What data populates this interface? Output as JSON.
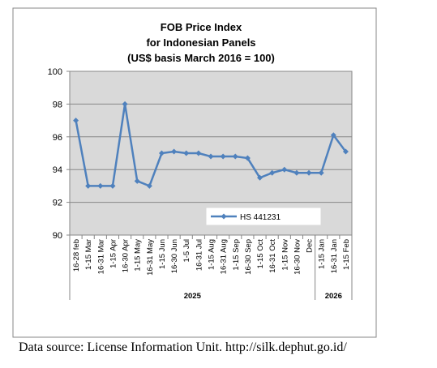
{
  "source_note": "Data source: License Information Unit. http://silk.dephut.go.id/",
  "chart_data": {
    "type": "line",
    "title": [
      "FOB Price Index",
      "for Indonesian Panels",
      "(US$ basis March 2016 = 100)"
    ],
    "xlabel": "",
    "ylabel": "",
    "ylim": [
      90,
      100
    ],
    "yticks": [
      "90",
      "92",
      "94",
      "96",
      "98",
      "100"
    ],
    "grid": true,
    "legend_position": "bottom-right",
    "plot_background": "#d9d9d9",
    "line_color": "#4f81bd",
    "categories": [
      "16-28 feb",
      "1-15 Mar",
      "16-31 Mar",
      "1-15 Apr",
      "16-30 Apr",
      "1-15 May",
      "16-31 May",
      "1-15 Jun",
      "16-30 Jun",
      "1-5 Jul",
      "16-31 Jul",
      "1-15 Aug",
      "16-31 Aug",
      "1-15 Sep",
      "16-30 Sep",
      "1-15 Oct",
      "16-31 Oct",
      "1-15 Nov",
      "16-30 Nov",
      "Dec",
      "1-15 Jan",
      "16-31 Jan",
      "1-15 Feb"
    ],
    "year_groups": [
      {
        "label": "2025",
        "count": 20
      },
      {
        "label": "2026",
        "count": 3
      }
    ],
    "series": [
      {
        "name": "HS 441231",
        "values": [
          97.0,
          93.0,
          93.0,
          93.0,
          98.0,
          93.3,
          93.0,
          95.0,
          95.1,
          95.0,
          95.0,
          94.8,
          94.8,
          94.8,
          94.7,
          93.5,
          93.8,
          94.0,
          93.8,
          93.8,
          93.8,
          96.1,
          95.1
        ]
      }
    ]
  }
}
